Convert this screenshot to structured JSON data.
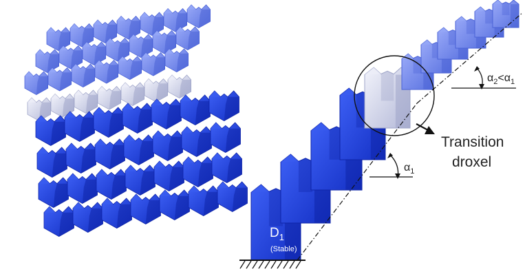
{
  "colors": {
    "dark_blue": "#1a3fe0",
    "dark_blue_shade": "#0e24a8",
    "dark_blue_light": "#3a5cf0",
    "light_blue": "#6f86ee",
    "light_blue_shade": "#4a62d6",
    "light_blue_light": "#95a8f7",
    "transition": "#c9cde6",
    "transition_shade": "#9ea4c8",
    "transition_light": "#eceef8",
    "line": "#111111"
  },
  "icons": {
    "ground": "ground-hatch-icon",
    "arrow": "arrow-right-icon"
  },
  "labels": {
    "transition_line1": "Transition",
    "transition_line2": "droxel",
    "d1_main": "D",
    "d1_sub": "1",
    "stable": "(Stable)",
    "alpha_sym": "α",
    "alpha1_sub": "1",
    "alpha2_sub": "2",
    "lt": "<"
  }
}
